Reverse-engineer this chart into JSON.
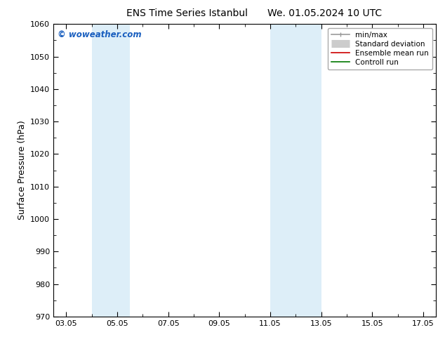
{
  "title_left": "ENS Time Series Istanbul",
  "title_right": "We. 01.05.2024 10 UTC",
  "ylabel": "Surface Pressure (hPa)",
  "ylim": [
    970,
    1060
  ],
  "yticks": [
    970,
    980,
    990,
    1000,
    1010,
    1020,
    1030,
    1040,
    1050,
    1060
  ],
  "xlim": [
    2.5,
    17.5
  ],
  "xtick_labels": [
    "03.05",
    "05.05",
    "07.05",
    "09.05",
    "11.05",
    "13.05",
    "15.05",
    "17.05"
  ],
  "xtick_positions": [
    3,
    5,
    7,
    9,
    11,
    13,
    15,
    17
  ],
  "shaded_bands": [
    {
      "x_start": 4.0,
      "x_end": 5.5,
      "color": "#ddeef8"
    },
    {
      "x_start": 11.0,
      "x_end": 13.0,
      "color": "#ddeef8"
    }
  ],
  "watermark_text": "© woweather.com",
  "watermark_color": "#1a5fbf",
  "legend_items": [
    {
      "label": "min/max",
      "color": "#999999",
      "lw": 1.2,
      "style": "minmax"
    },
    {
      "label": "Standard deviation",
      "color": "#cccccc",
      "lw": 8,
      "style": "thick"
    },
    {
      "label": "Ensemble mean run",
      "color": "#cc0000",
      "lw": 1.2,
      "style": "line"
    },
    {
      "label": "Controll run",
      "color": "#007700",
      "lw": 1.2,
      "style": "line"
    }
  ],
  "background_color": "#ffffff",
  "plot_bg_color": "#ffffff",
  "title_fontsize": 10,
  "axis_label_fontsize": 9,
  "tick_fontsize": 8,
  "legend_fontsize": 7.5
}
